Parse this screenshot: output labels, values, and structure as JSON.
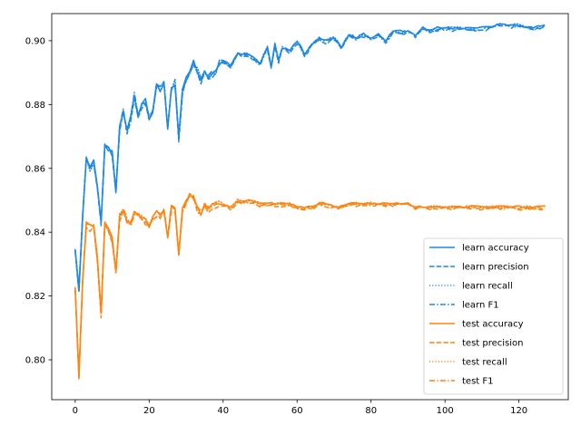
{
  "chart_data": {
    "type": "line",
    "title": "",
    "xlabel": "",
    "ylabel": "",
    "xlim": [
      -6.35,
      133.35
    ],
    "ylim": [
      0.7875,
      0.9085
    ],
    "xticks": [
      0,
      20,
      40,
      60,
      80,
      100,
      120
    ],
    "yticks": [
      0.8,
      0.82,
      0.84,
      0.86,
      0.88,
      0.9
    ],
    "ytick_labels": [
      "0.80",
      "0.82",
      "0.84",
      "0.86",
      "0.88",
      "0.90"
    ],
    "grid": false,
    "legend_position": "lower-right",
    "colors": {
      "learn": "#1f88e5",
      "test": "#ff8410"
    },
    "x_range": [
      0,
      127
    ],
    "learn_anchors": [
      [
        0,
        0.835
      ],
      [
        1,
        0.822
      ],
      [
        2,
        0.845
      ],
      [
        3,
        0.864
      ],
      [
        4,
        0.86
      ],
      [
        5,
        0.862
      ],
      [
        6,
        0.855
      ],
      [
        7,
        0.843
      ],
      [
        8,
        0.868
      ],
      [
        9,
        0.866
      ],
      [
        10,
        0.865
      ],
      [
        11,
        0.853
      ],
      [
        12,
        0.873
      ],
      [
        13,
        0.878
      ],
      [
        14,
        0.872
      ],
      [
        15,
        0.876
      ],
      [
        16,
        0.883
      ],
      [
        17,
        0.876
      ],
      [
        18,
        0.88
      ],
      [
        19,
        0.882
      ],
      [
        20,
        0.876
      ],
      [
        21,
        0.878
      ],
      [
        22,
        0.886
      ],
      [
        23,
        0.885
      ],
      [
        24,
        0.887
      ],
      [
        25,
        0.873
      ],
      [
        26,
        0.885
      ],
      [
        27,
        0.887
      ],
      [
        28,
        0.87
      ],
      [
        29,
        0.884
      ],
      [
        30,
        0.888
      ],
      [
        31,
        0.89
      ],
      [
        32,
        0.893
      ],
      [
        33,
        0.891
      ],
      [
        34,
        0.888
      ],
      [
        35,
        0.89
      ],
      [
        36,
        0.889
      ],
      [
        37,
        0.89
      ],
      [
        38,
        0.89
      ],
      [
        39,
        0.893
      ],
      [
        40,
        0.894
      ],
      [
        42,
        0.892
      ],
      [
        44,
        0.896
      ],
      [
        46,
        0.896
      ],
      [
        48,
        0.895
      ],
      [
        50,
        0.893
      ],
      [
        52,
        0.898
      ],
      [
        53,
        0.892
      ],
      [
        54,
        0.899
      ],
      [
        55,
        0.894
      ],
      [
        56,
        0.898
      ],
      [
        58,
        0.897
      ],
      [
        60,
        0.9
      ],
      [
        62,
        0.896
      ],
      [
        64,
        0.899
      ],
      [
        66,
        0.901
      ],
      [
        68,
        0.9
      ],
      [
        70,
        0.901
      ],
      [
        72,
        0.898
      ],
      [
        74,
        0.902
      ],
      [
        76,
        0.901
      ],
      [
        78,
        0.902
      ],
      [
        80,
        0.901
      ],
      [
        82,
        0.902
      ],
      [
        84,
        0.9
      ],
      [
        86,
        0.903
      ],
      [
        88,
        0.903
      ],
      [
        90,
        0.903
      ],
      [
        92,
        0.902
      ],
      [
        94,
        0.904
      ],
      [
        96,
        0.903
      ],
      [
        98,
        0.904
      ],
      [
        100,
        0.904
      ],
      [
        105,
        0.904
      ],
      [
        110,
        0.904
      ],
      [
        115,
        0.905
      ],
      [
        120,
        0.905
      ],
      [
        124,
        0.904
      ],
      [
        127,
        0.905
      ]
    ],
    "test_anchors": [
      [
        0,
        0.823
      ],
      [
        1,
        0.795
      ],
      [
        2,
        0.825
      ],
      [
        3,
        0.843
      ],
      [
        4,
        0.842
      ],
      [
        5,
        0.842
      ],
      [
        6,
        0.832
      ],
      [
        7,
        0.815
      ],
      [
        8,
        0.843
      ],
      [
        9,
        0.841
      ],
      [
        10,
        0.838
      ],
      [
        11,
        0.828
      ],
      [
        12,
        0.845
      ],
      [
        13,
        0.847
      ],
      [
        14,
        0.844
      ],
      [
        15,
        0.843
      ],
      [
        16,
        0.846
      ],
      [
        17,
        0.846
      ],
      [
        18,
        0.845
      ],
      [
        19,
        0.844
      ],
      [
        20,
        0.842
      ],
      [
        21,
        0.845
      ],
      [
        22,
        0.846
      ],
      [
        23,
        0.846
      ],
      [
        24,
        0.847
      ],
      [
        25,
        0.838
      ],
      [
        26,
        0.848
      ],
      [
        27,
        0.848
      ],
      [
        28,
        0.833
      ],
      [
        29,
        0.847
      ],
      [
        30,
        0.85
      ],
      [
        31,
        0.852
      ],
      [
        32,
        0.851
      ],
      [
        33,
        0.848
      ],
      [
        34,
        0.846
      ],
      [
        35,
        0.849
      ],
      [
        36,
        0.848
      ],
      [
        38,
        0.849
      ],
      [
        40,
        0.849
      ],
      [
        42,
        0.848
      ],
      [
        44,
        0.85
      ],
      [
        46,
        0.85
      ],
      [
        48,
        0.85
      ],
      [
        50,
        0.849
      ],
      [
        52,
        0.849
      ],
      [
        54,
        0.849
      ],
      [
        56,
        0.849
      ],
      [
        58,
        0.849
      ],
      [
        60,
        0.848
      ],
      [
        62,
        0.848
      ],
      [
        64,
        0.848
      ],
      [
        66,
        0.849
      ],
      [
        68,
        0.849
      ],
      [
        70,
        0.848
      ],
      [
        72,
        0.848
      ],
      [
        74,
        0.849
      ],
      [
        76,
        0.849
      ],
      [
        78,
        0.849
      ],
      [
        80,
        0.849
      ],
      [
        82,
        0.849
      ],
      [
        84,
        0.849
      ],
      [
        86,
        0.849
      ],
      [
        88,
        0.849
      ],
      [
        90,
        0.849
      ],
      [
        92,
        0.848
      ],
      [
        94,
        0.848
      ],
      [
        96,
        0.848
      ],
      [
        98,
        0.848
      ],
      [
        100,
        0.848
      ],
      [
        105,
        0.848
      ],
      [
        110,
        0.848
      ],
      [
        115,
        0.848
      ],
      [
        120,
        0.848
      ],
      [
        124,
        0.848
      ],
      [
        127,
        0.848
      ]
    ],
    "series": [
      {
        "name": "learn accuracy",
        "group": "learn",
        "linestyle": "solid",
        "noise_seed": 11,
        "offset": 0.0,
        "jitter": 0.0012
      },
      {
        "name": "learn precision",
        "group": "learn",
        "linestyle": "dashed",
        "noise_seed": 23,
        "offset": -0.0005,
        "jitter": 0.0018
      },
      {
        "name": "learn recall",
        "group": "learn",
        "linestyle": "dotted",
        "noise_seed": 37,
        "offset": 0.0,
        "jitter": 0.0012
      },
      {
        "name": "learn F1",
        "group": "learn",
        "linestyle": "dashdot",
        "noise_seed": 41,
        "offset": -0.0003,
        "jitter": 0.0014
      },
      {
        "name": "test accuracy",
        "group": "test",
        "linestyle": "solid",
        "noise_seed": 53,
        "offset": 0.0,
        "jitter": 0.001
      },
      {
        "name": "test precision",
        "group": "test",
        "linestyle": "dashed",
        "noise_seed": 67,
        "offset": -0.0006,
        "jitter": 0.0016
      },
      {
        "name": "test recall",
        "group": "test",
        "linestyle": "dotted",
        "noise_seed": 71,
        "offset": 0.0,
        "jitter": 0.001
      },
      {
        "name": "test F1",
        "group": "test",
        "linestyle": "dashdot",
        "noise_seed": 83,
        "offset": -0.0004,
        "jitter": 0.0013
      }
    ]
  }
}
